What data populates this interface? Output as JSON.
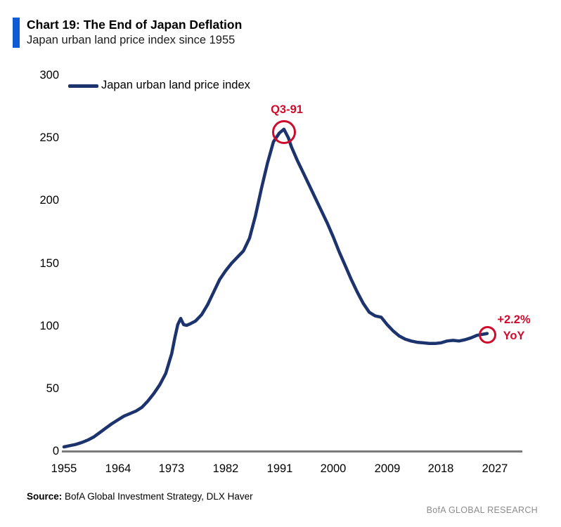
{
  "header": {
    "title": "Chart 19: The End of Japan Deflation",
    "subtitle": "Japan urban land price index since 1955"
  },
  "legend": {
    "label": "Japan urban land price index"
  },
  "axis": {
    "y_tick_labels": [
      "300",
      "250",
      "200",
      "150",
      "100",
      "50",
      "0"
    ],
    "x_tick_labels": [
      "1955",
      "1964",
      "1973",
      "1982",
      "1991",
      "2000",
      "2009",
      "2018",
      "2027"
    ]
  },
  "chart_data": {
    "type": "line",
    "title": "Chart 19: The End of Japan Deflation",
    "subtitle": "Japan urban land price index since 1955",
    "xlabel": "",
    "ylabel": "",
    "ylim": [
      0,
      300
    ],
    "xlim": [
      1955,
      2031
    ],
    "grid": false,
    "legend_position": "top-left",
    "x_ticks": [
      1955,
      1964,
      1973,
      1982,
      1991,
      2000,
      2009,
      2018,
      2027
    ],
    "y_ticks": [
      0,
      50,
      100,
      150,
      200,
      250,
      300
    ],
    "line_color": "#1c336e",
    "annotation_color": "#ce0b2d",
    "accent_color": "#0f5bd5",
    "series": [
      {
        "name": "Japan urban land price index",
        "x": [
          1955,
          1956,
          1957,
          1958,
          1959,
          1960,
          1961,
          1962,
          1963,
          1964,
          1965,
          1966,
          1967,
          1968,
          1969,
          1970,
          1971,
          1972,
          1973,
          1973.5,
          1974,
          1974.5,
          1975,
          1975.5,
          1976,
          1977,
          1978,
          1979,
          1980,
          1981,
          1982,
          1983,
          1984,
          1985,
          1986,
          1987,
          1988,
          1989,
          1990,
          1991,
          1991.75,
          1992.5,
          1993,
          1994,
          1995,
          1996,
          1997,
          1998,
          1999,
          2000,
          2001,
          2002,
          2003,
          2004,
          2005,
          2006,
          2007,
          2008,
          2009,
          2010,
          2011,
          2012,
          2013,
          2014,
          2015,
          2016,
          2017,
          2018,
          2019,
          2020,
          2021,
          2022,
          2023,
          2024,
          2025.7
        ],
        "y": [
          3.5,
          4.5,
          5.5,
          7,
          9,
          11.5,
          15,
          18.5,
          22,
          25,
          28,
          30,
          32,
          35,
          40,
          46,
          53,
          62,
          78,
          90,
          101,
          106,
          101,
          100.5,
          101.5,
          104,
          109,
          117,
          127,
          137,
          144,
          150,
          155,
          160,
          170,
          188,
          210,
          230,
          247,
          254,
          257,
          250,
          243,
          232,
          222,
          212,
          202,
          192,
          182,
          171,
          159,
          148,
          137,
          127,
          118,
          111,
          108,
          107,
          101,
          96,
          92,
          89.5,
          88,
          87,
          86.5,
          86,
          86,
          86.5,
          88,
          88.5,
          88,
          89,
          90.5,
          92.5,
          94
        ]
      }
    ],
    "annotations": [
      {
        "label": "Q3-91",
        "x": 1991.75,
        "y": 257
      },
      {
        "label_line1": "+2.2%",
        "label_line2": "YoY",
        "x": 2025.7,
        "y": 94
      }
    ]
  },
  "footer": {
    "source_label": "Source:",
    "source_text": " BofA Global Investment Strategy, DLX Haver",
    "brand": "BofA GLOBAL RESEARCH"
  }
}
